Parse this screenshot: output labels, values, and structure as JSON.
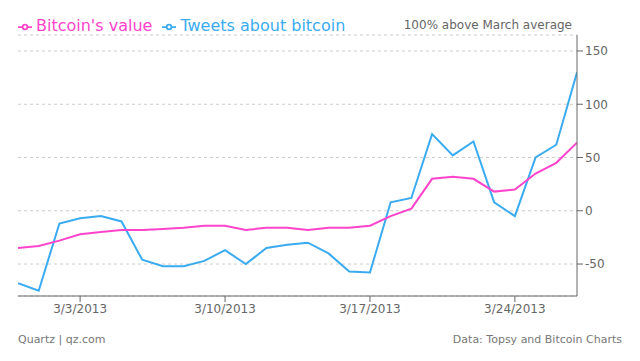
{
  "chart_data": {
    "type": "line",
    "x": [
      0,
      1,
      2,
      3,
      4,
      5,
      6,
      7,
      8,
      9,
      10,
      11,
      12,
      13,
      14,
      15,
      16,
      17,
      18,
      19,
      20,
      21,
      22,
      23,
      24,
      25,
      26,
      27
    ],
    "series": [
      {
        "name": "Tweets about bitcoin",
        "color": "#3aabf0",
        "values": [
          -68,
          -75,
          -12,
          -7,
          -5,
          -10,
          -46,
          -52,
          -52,
          -47,
          -37,
          -50,
          -35,
          -32,
          -30,
          -40,
          -57,
          -58,
          8,
          12,
          72,
          52,
          65,
          8,
          -5,
          50,
          62,
          130
        ]
      },
      {
        "name": "Bitcoin's value",
        "color": "#ff44cc",
        "values": [
          -35,
          -33,
          -28,
          -22,
          -20,
          -18,
          -18,
          -17,
          -16,
          -14,
          -14,
          -18,
          -16,
          -16,
          -18,
          -16,
          -16,
          -14,
          -5,
          2,
          30,
          32,
          30,
          18,
          20,
          35,
          45,
          64
        ]
      }
    ],
    "xlim": [
      0,
      27
    ],
    "xticks": [
      {
        "value": 3,
        "label": "3/3/2013"
      },
      {
        "value": 10,
        "label": "3/10/2013"
      },
      {
        "value": 17,
        "label": "3/17/2013"
      },
      {
        "value": 24,
        "label": "3/24/2013"
      }
    ],
    "ylim": [
      -80,
      165
    ],
    "yticks": [
      -50,
      0,
      50,
      100,
      150
    ],
    "grid": true,
    "legend": "upper left",
    "annotations": [
      "100% above March average",
      "Quartz | qz.com",
      "Data: Topsy and Bitcoin Charts"
    ]
  }
}
